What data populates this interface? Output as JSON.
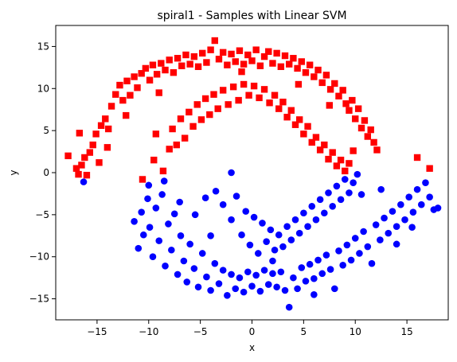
{
  "chart_data": {
    "type": "scatter",
    "title": "spiral1 - Samples with Linear SVM",
    "xlabel": "x",
    "ylabel": "y",
    "xlim": [
      -19,
      19
    ],
    "ylim": [
      -17.5,
      17.5
    ],
    "xticks": [
      -15,
      -10,
      -5,
      0,
      5,
      10,
      15
    ],
    "yticks": [
      -15,
      -10,
      -5,
      0,
      5,
      10,
      15
    ],
    "grid": false,
    "series": [
      {
        "marker": "square",
        "color": "#ff0000",
        "points": [
          [
            -17.8,
            2.0
          ],
          [
            -17.0,
            0.5
          ],
          [
            -16.7,
            4.7
          ],
          [
            -16.8,
            -0.2
          ],
          [
            -16.5,
            0.9
          ],
          [
            -16.2,
            1.8
          ],
          [
            -16.0,
            -0.3
          ],
          [
            -15.7,
            2.4
          ],
          [
            -15.4,
            3.3
          ],
          [
            -15.1,
            4.6
          ],
          [
            -14.8,
            1.2
          ],
          [
            -14.6,
            5.6
          ],
          [
            -14.2,
            6.4
          ],
          [
            -13.9,
            5.2
          ],
          [
            -13.6,
            7.9
          ],
          [
            -13.2,
            9.3
          ],
          [
            -12.8,
            10.4
          ],
          [
            -12.5,
            8.6
          ],
          [
            -12.1,
            10.9
          ],
          [
            -11.8,
            9.2
          ],
          [
            -11.4,
            11.4
          ],
          [
            -11.1,
            10.1
          ],
          [
            -10.7,
            11.8
          ],
          [
            -10.3,
            12.4
          ],
          [
            -9.9,
            11.0
          ],
          [
            -9.6,
            12.8
          ],
          [
            -9.2,
            11.7
          ],
          [
            -8.8,
            13.0
          ],
          [
            -8.4,
            12.2
          ],
          [
            -8.0,
            13.4
          ],
          [
            -7.6,
            11.9
          ],
          [
            -7.2,
            13.6
          ],
          [
            -6.8,
            12.7
          ],
          [
            -6.4,
            14.0
          ],
          [
            -6.0,
            12.9
          ],
          [
            -5.6,
            13.8
          ],
          [
            -5.2,
            12.6
          ],
          [
            -4.8,
            14.2
          ],
          [
            -4.4,
            13.1
          ],
          [
            -4.0,
            14.6
          ],
          [
            -3.6,
            15.7
          ],
          [
            -3.2,
            13.5
          ],
          [
            -2.8,
            14.3
          ],
          [
            -2.4,
            12.8
          ],
          [
            -2.0,
            14.1
          ],
          [
            -1.6,
            13.2
          ],
          [
            -1.2,
            14.5
          ],
          [
            -0.8,
            12.9
          ],
          [
            -0.4,
            14.0
          ],
          [
            0.0,
            13.3
          ],
          [
            0.4,
            14.6
          ],
          [
            0.8,
            12.7
          ],
          [
            1.2,
            13.8
          ],
          [
            1.6,
            14.4
          ],
          [
            2.0,
            13.0
          ],
          [
            2.4,
            14.2
          ],
          [
            2.8,
            12.6
          ],
          [
            3.2,
            13.9
          ],
          [
            3.6,
            12.9
          ],
          [
            4.0,
            13.6
          ],
          [
            4.4,
            12.4
          ],
          [
            4.8,
            13.2
          ],
          [
            5.2,
            11.9
          ],
          [
            5.6,
            12.8
          ],
          [
            6.0,
            11.4
          ],
          [
            6.4,
            12.2
          ],
          [
            6.8,
            10.7
          ],
          [
            7.2,
            11.6
          ],
          [
            7.6,
            9.9
          ],
          [
            8.0,
            10.6
          ],
          [
            8.4,
            9.1
          ],
          [
            8.8,
            9.8
          ],
          [
            9.1,
            8.2
          ],
          [
            9.4,
            7.4
          ],
          [
            9.7,
            8.6
          ],
          [
            10.0,
            6.4
          ],
          [
            10.3,
            7.6
          ],
          [
            10.6,
            5.3
          ],
          [
            10.9,
            6.2
          ],
          [
            11.2,
            4.3
          ],
          [
            11.5,
            5.1
          ],
          [
            11.8,
            3.6
          ],
          [
            12.1,
            2.7
          ],
          [
            -10.6,
            -0.8
          ],
          [
            -9.5,
            1.5
          ],
          [
            -9.3,
            4.6
          ],
          [
            -8.6,
            0.2
          ],
          [
            -8.0,
            2.8
          ],
          [
            -7.7,
            5.2
          ],
          [
            -7.3,
            3.3
          ],
          [
            -6.9,
            6.4
          ],
          [
            -6.5,
            4.1
          ],
          [
            -6.1,
            7.2
          ],
          [
            -5.7,
            5.5
          ],
          [
            -5.3,
            8.1
          ],
          [
            -4.9,
            6.3
          ],
          [
            -4.5,
            8.8
          ],
          [
            -4.1,
            6.9
          ],
          [
            -3.7,
            9.3
          ],
          [
            -3.3,
            7.6
          ],
          [
            -2.8,
            9.8
          ],
          [
            -2.3,
            8.1
          ],
          [
            -1.8,
            10.2
          ],
          [
            -1.3,
            8.6
          ],
          [
            -0.8,
            10.5
          ],
          [
            -0.3,
            9.2
          ],
          [
            0.2,
            10.3
          ],
          [
            0.7,
            8.9
          ],
          [
            1.2,
            9.9
          ],
          [
            1.7,
            8.3
          ],
          [
            2.2,
            9.2
          ],
          [
            2.6,
            7.6
          ],
          [
            3.0,
            8.4
          ],
          [
            3.4,
            6.6
          ],
          [
            3.8,
            7.4
          ],
          [
            4.2,
            5.7
          ],
          [
            4.6,
            6.3
          ],
          [
            5.0,
            4.6
          ],
          [
            5.4,
            5.5
          ],
          [
            5.8,
            3.6
          ],
          [
            6.2,
            4.2
          ],
          [
            6.6,
            2.7
          ],
          [
            7.0,
            3.3
          ],
          [
            7.4,
            1.6
          ],
          [
            7.8,
            2.4
          ],
          [
            8.2,
            0.8
          ],
          [
            8.6,
            1.5
          ],
          [
            9.0,
            0.2
          ],
          [
            9.4,
            1.1
          ],
          [
            9.8,
            2.6
          ],
          [
            16.0,
            1.8
          ],
          [
            17.2,
            0.5
          ],
          [
            -9.0,
            9.5
          ],
          [
            -12.2,
            6.8
          ],
          [
            -14.0,
            3.0
          ],
          [
            -1.0,
            12.0
          ],
          [
            4.5,
            10.5
          ],
          [
            7.5,
            8.0
          ]
        ]
      },
      {
        "marker": "circle",
        "color": "#0000ff",
        "points": [
          [
            -16.3,
            -1.1
          ],
          [
            -11.4,
            -5.8
          ],
          [
            -11.0,
            -9.0
          ],
          [
            -10.7,
            -4.7
          ],
          [
            -10.5,
            -7.4
          ],
          [
            -10.1,
            -3.1
          ],
          [
            -9.9,
            -6.5
          ],
          [
            -9.6,
            -10.0
          ],
          [
            -9.3,
            -4.2
          ],
          [
            -9.0,
            -8.1
          ],
          [
            -8.7,
            -2.6
          ],
          [
            -8.4,
            -11.1
          ],
          [
            -8.1,
            -6.1
          ],
          [
            -7.8,
            -9.2
          ],
          [
            -7.5,
            -4.9
          ],
          [
            -7.2,
            -12.1
          ],
          [
            -6.9,
            -7.5
          ],
          [
            -6.6,
            -10.5
          ],
          [
            -6.3,
            -13.0
          ],
          [
            -6.0,
            -8.5
          ],
          [
            -5.6,
            -11.4
          ],
          [
            -5.2,
            -13.6
          ],
          [
            -4.8,
            -9.6
          ],
          [
            -4.4,
            -12.4
          ],
          [
            -4.0,
            -14.0
          ],
          [
            -3.6,
            -10.8
          ],
          [
            -3.2,
            -13.2
          ],
          [
            -2.8,
            -11.6
          ],
          [
            -2.4,
            -14.6
          ],
          [
            -2.0,
            -12.1
          ],
          [
            -1.6,
            -13.8
          ],
          [
            -1.2,
            -12.5
          ],
          [
            -0.8,
            -14.2
          ],
          [
            -0.4,
            -11.8
          ],
          [
            0.0,
            -13.5
          ],
          [
            0.4,
            -12.2
          ],
          [
            0.8,
            -14.1
          ],
          [
            1.2,
            -11.6
          ],
          [
            1.6,
            -13.3
          ],
          [
            2.0,
            -12.0
          ],
          [
            2.4,
            -13.6
          ],
          [
            2.8,
            -11.8
          ],
          [
            3.2,
            -14.0
          ],
          [
            3.6,
            -16.0
          ],
          [
            4.0,
            -12.5
          ],
          [
            4.4,
            -13.8
          ],
          [
            4.8,
            -11.3
          ],
          [
            5.2,
            -12.9
          ],
          [
            5.6,
            -10.9
          ],
          [
            6.0,
            -12.6
          ],
          [
            6.4,
            -10.4
          ],
          [
            6.8,
            -12.0
          ],
          [
            7.2,
            -9.8
          ],
          [
            7.6,
            -11.5
          ],
          [
            8.0,
            -13.8
          ],
          [
            8.4,
            -9.3
          ],
          [
            8.8,
            -11.0
          ],
          [
            9.2,
            -8.6
          ],
          [
            9.6,
            -10.4
          ],
          [
            10.0,
            -7.8
          ],
          [
            10.4,
            -9.6
          ],
          [
            10.8,
            -7.0
          ],
          [
            11.2,
            -8.8
          ],
          [
            11.6,
            -10.8
          ],
          [
            12.0,
            -6.2
          ],
          [
            12.4,
            -8.0
          ],
          [
            12.8,
            -5.4
          ],
          [
            13.2,
            -7.2
          ],
          [
            13.6,
            -4.6
          ],
          [
            14.0,
            -6.4
          ],
          [
            14.4,
            -3.8
          ],
          [
            14.8,
            -5.6
          ],
          [
            15.2,
            -2.9
          ],
          [
            15.6,
            -4.7
          ],
          [
            16.0,
            -2.0
          ],
          [
            16.4,
            -3.8
          ],
          [
            16.8,
            -1.2
          ],
          [
            17.2,
            -2.9
          ],
          [
            17.6,
            -4.4
          ],
          [
            18.0,
            -4.2
          ],
          [
            -2.0,
            0.0
          ],
          [
            -3.5,
            -2.2
          ],
          [
            -2.8,
            -3.8
          ],
          [
            -2.0,
            -5.6
          ],
          [
            -1.5,
            -2.8
          ],
          [
            -1.0,
            -7.4
          ],
          [
            -0.6,
            -4.6
          ],
          [
            -0.2,
            -8.6
          ],
          [
            0.2,
            -5.3
          ],
          [
            0.6,
            -9.6
          ],
          [
            1.0,
            -6.0
          ],
          [
            1.4,
            -8.2
          ],
          [
            1.8,
            -6.8
          ],
          [
            2.2,
            -9.2
          ],
          [
            2.6,
            -7.4
          ],
          [
            3.0,
            -8.8
          ],
          [
            3.4,
            -6.4
          ],
          [
            3.8,
            -8.0
          ],
          [
            4.2,
            -5.6
          ],
          [
            4.6,
            -7.2
          ],
          [
            5.0,
            -4.8
          ],
          [
            5.4,
            -6.4
          ],
          [
            5.8,
            -4.0
          ],
          [
            6.2,
            -5.6
          ],
          [
            6.6,
            -3.2
          ],
          [
            7.0,
            -4.8
          ],
          [
            7.4,
            -2.4
          ],
          [
            7.8,
            -4.0
          ],
          [
            8.2,
            -1.6
          ],
          [
            8.6,
            -3.2
          ],
          [
            9.0,
            -0.8
          ],
          [
            9.4,
            -2.4
          ],
          [
            9.8,
            -1.2
          ],
          [
            10.2,
            -0.2
          ],
          [
            10.6,
            -2.6
          ],
          [
            -4.5,
            -3.0
          ],
          [
            -5.5,
            -5.0
          ],
          [
            -7.0,
            -3.5
          ],
          [
            -8.5,
            -1.0
          ],
          [
            12.5,
            -2.0
          ],
          [
            14.0,
            -8.5
          ],
          [
            15.5,
            -6.5
          ],
          [
            -10.0,
            -1.5
          ],
          [
            -4.0,
            -7.5
          ],
          [
            2.0,
            -10.5
          ],
          [
            6.0,
            -14.5
          ]
        ]
      }
    ]
  }
}
